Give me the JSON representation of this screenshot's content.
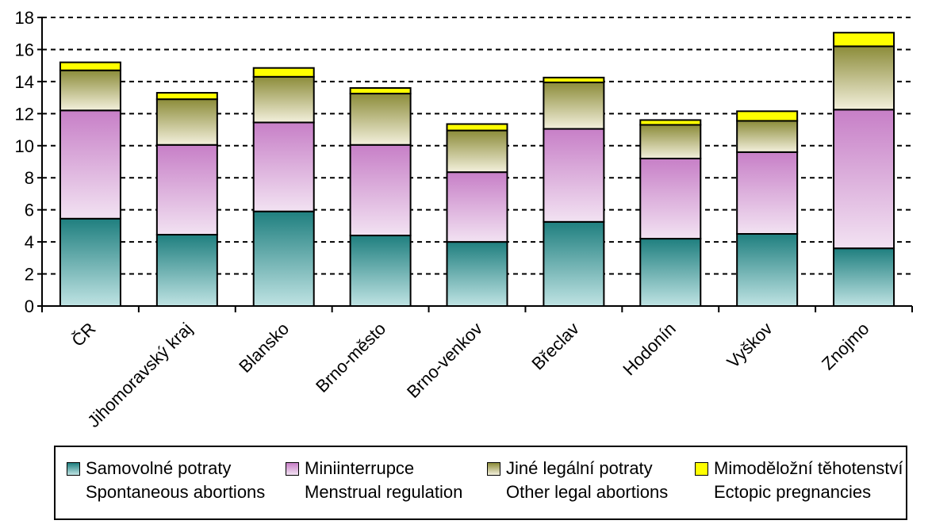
{
  "chart_data": {
    "type": "bar",
    "stacked": true,
    "title": "",
    "xlabel": "",
    "ylabel": "",
    "ylim": [
      0,
      18
    ],
    "yticks": [
      0,
      2,
      4,
      6,
      8,
      10,
      12,
      14,
      16,
      18
    ],
    "grid": "horizontal dashed",
    "legend_position": "bottom",
    "categories": [
      "ČR",
      "Jihomoravský kraj",
      "Blansko",
      "Brno-město",
      "Brno-venkov",
      "Břeclav",
      "Hodonín",
      "Vyškov",
      "Znojmo"
    ],
    "series": [
      {
        "name": "Samovolné potraty",
        "name_en": "Spontaneous abortions",
        "values": [
          5.45,
          4.45,
          5.9,
          4.4,
          4.0,
          5.25,
          4.2,
          4.5,
          3.6
        ],
        "color": "#1f7f7f",
        "color_light": "#bfe3e3"
      },
      {
        "name": "Miniinterrupce",
        "name_en": "Menstrual regulation",
        "values": [
          6.75,
          5.6,
          5.55,
          5.65,
          4.35,
          5.8,
          5.0,
          5.1,
          8.65
        ],
        "color": "#c77fc7",
        "color_light": "#f2e2f2"
      },
      {
        "name": "Jiné legální potraty",
        "name_en": "Other legal abortions",
        "values": [
          2.5,
          2.85,
          2.85,
          3.2,
          2.6,
          2.9,
          2.1,
          1.95,
          3.95
        ],
        "color": "#8c8c3a",
        "color_light": "#f3f0dc"
      },
      {
        "name": "Mimoděložní těhotenství",
        "name_en": "Ectopic pregnancies",
        "values": [
          0.5,
          0.4,
          0.55,
          0.35,
          0.4,
          0.3,
          0.3,
          0.6,
          0.85
        ],
        "color": "#ffff00",
        "color_light": "#ffff00"
      }
    ]
  }
}
